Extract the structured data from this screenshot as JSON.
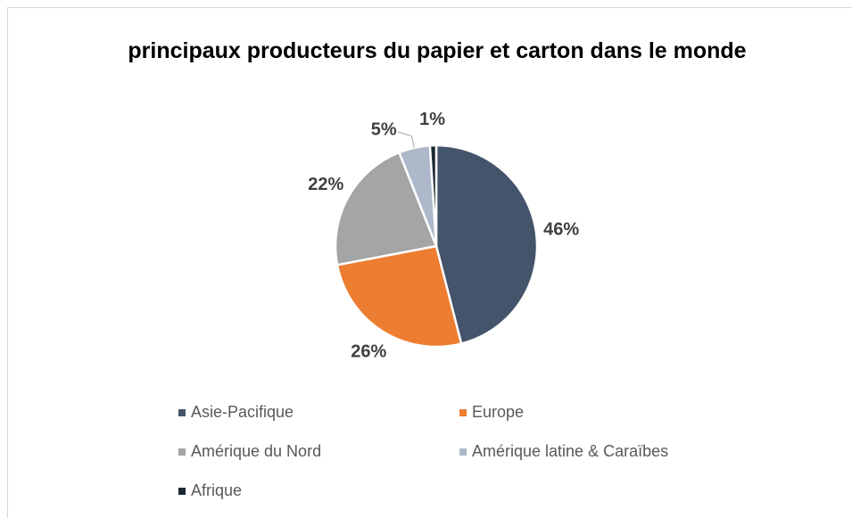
{
  "chart_data": {
    "type": "pie",
    "title": "principaux producteurs du papier et carton dans le monde",
    "categories": [
      "Asie-Pacifique",
      "Europe",
      "Amérique du Nord",
      "Amérique latine & Caraïbes",
      "Afrique"
    ],
    "values": [
      46,
      26,
      22,
      5,
      1
    ],
    "value_labels": [
      "46%",
      "26%",
      "22%",
      "5%",
      "1%"
    ],
    "colors": [
      "#44546a",
      "#ed7d31",
      "#a5a5a5",
      "#adb9ca",
      "#1c2833"
    ],
    "legend": "bottom"
  }
}
